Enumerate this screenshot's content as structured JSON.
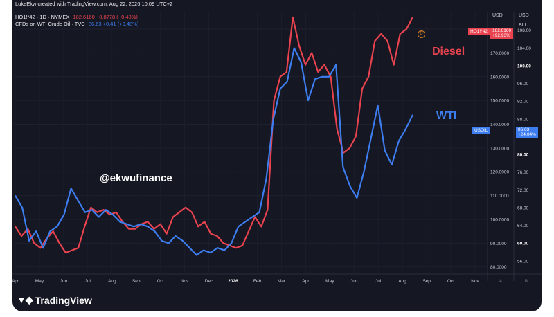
{
  "header": {
    "line1": "LukeEkw created with TradingView.com, Aug 22, 2026 10:09 UTC+2",
    "line2_symbol": "HO1!*42 · 1D · NYMEX",
    "line2_value": "182.6160 −0.8778 (−0.48%)",
    "line3_symbol": "CFDs on WTI Crude Oil · TVC",
    "line3_value": "86.63 +0.41 (+0.48%)"
  },
  "units": {
    "left_currency": "USD",
    "right_currency": "USD",
    "right_sub": "BLL"
  },
  "tags": {
    "diesel_symbol": "HO1!*42",
    "diesel_value": "182.6160",
    "diesel_change": "+92.93%",
    "wti_symbol": "USOIL",
    "wti_value": "86.63",
    "wti_change": "+24.04%",
    "marker": "D"
  },
  "labels": {
    "diesel": "Diesel",
    "wti": "WTI",
    "watermark": "@ekwufinance"
  },
  "footer": {
    "brand": "TradingView"
  },
  "colors": {
    "diesel": "#e8434f",
    "wti": "#3d7df0",
    "background": "#151722"
  },
  "chart_data": {
    "type": "line",
    "x_ticks": [
      "Apr",
      "May",
      "Jun",
      "Jul",
      "Aug",
      "Sep",
      "Oct",
      "Nov",
      "Dec",
      "2026",
      "Feb",
      "Mar",
      "Apr",
      "May",
      "Jun",
      "Jul",
      "Aug",
      "Sep",
      "Oct",
      "Nov"
    ],
    "left_axis": {
      "ticks": [
        "180.0000",
        "170.0000",
        "160.0000",
        "150.0000",
        "140.0000",
        "130.0000",
        "120.0000",
        "110.0000",
        "100.0000",
        "90.0000",
        "80.0000"
      ],
      "range": [
        77,
        187
      ]
    },
    "right_axis": {
      "ticks": [
        "108.00",
        "104.00",
        "100.00",
        "96.00",
        "92.00",
        "88.00",
        "84.00",
        "80.00",
        "76.00",
        "72.00",
        "68.00",
        "64.00",
        "60.00",
        "56.00"
      ],
      "range": [
        53,
        112
      ]
    },
    "series": [
      {
        "name": "Diesel",
        "axis": "left",
        "values": [
          97,
          93,
          96,
          90,
          88,
          92,
          95,
          90,
          86,
          87,
          88,
          97,
          105,
          103,
          104,
          102,
          103,
          99,
          96,
          96,
          98,
          99,
          96,
          98,
          94,
          101,
          103,
          105,
          103,
          97,
          99,
          94,
          93,
          90,
          89,
          88,
          89,
          95,
          101,
          97,
          104,
          150,
          160,
          162,
          185,
          173,
          165,
          170,
          162,
          165,
          160,
          138,
          128,
          130,
          135,
          155,
          160,
          175,
          178,
          175,
          165,
          178,
          180,
          185
        ]
      },
      {
        "name": "WTI",
        "axis": "left",
        "values": [
          110,
          105,
          91,
          95,
          88,
          95,
          97,
          102,
          113,
          108,
          103,
          104,
          101,
          104,
          102,
          99,
          98,
          97,
          98,
          97,
          95,
          91,
          90,
          93,
          91,
          88,
          85,
          87,
          86,
          88,
          87,
          90,
          97,
          99,
          101,
          103,
          117,
          142,
          155,
          158,
          172,
          166,
          150,
          159,
          160,
          160,
          165,
          122,
          114,
          109,
          120,
          134,
          148,
          129,
          123,
          133,
          138,
          144
        ]
      }
    ]
  }
}
